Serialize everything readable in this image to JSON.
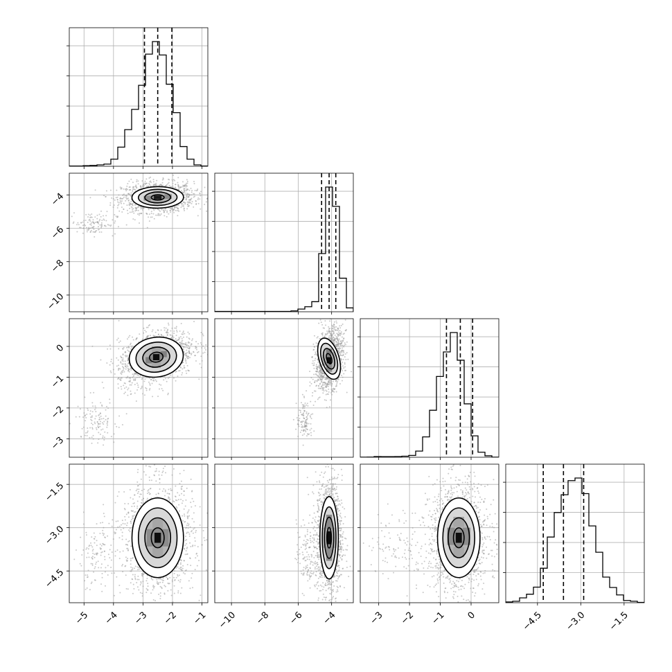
{
  "figure": {
    "background": "#ffffff",
    "line_color": "#000000",
    "grid_color": "#b0b0b0",
    "scatter_color": "#9a9a9a"
  },
  "chart_data": {
    "type": "corner",
    "title": "",
    "parameters": [
      {
        "name": "",
        "range": [
          -5.5,
          -0.8
        ],
        "ticks": [
          -5,
          -4,
          -3,
          -2,
          -1
        ],
        "tick_labels": [
          "−5",
          "−4",
          "−3",
          "−2",
          "−1"
        ],
        "quantiles": [
          -2.95,
          -2.5,
          -2.02
        ],
        "hist_bin_edges": [
          -5.5,
          -5.265,
          -5.03,
          -4.795,
          -4.56,
          -4.325,
          -4.09,
          -3.855,
          -3.62,
          -3.385,
          -3.15,
          -2.915,
          -2.68,
          -2.445,
          -2.21,
          -1.975,
          -1.74,
          -1.505,
          -1.27,
          -1.035,
          -0.8
        ],
        "hist_counts": [
          1,
          1,
          2,
          3,
          5,
          8,
          26,
          70,
          134,
          208,
          296,
          410,
          456,
          407,
          300,
          196,
          72,
          26,
          5,
          1
        ]
      },
      {
        "name": "",
        "range": [
          -11.0,
          -2.7
        ],
        "ticks": [
          -10,
          -8,
          -6,
          -4
        ],
        "tick_labels": [
          "−10",
          "−8",
          "−6",
          "−4"
        ],
        "quantiles": [
          -4.6,
          -4.15,
          -3.75
        ],
        "hist_bin_edges": [
          -11.0,
          -10.585,
          -10.17,
          -9.755,
          -9.34,
          -8.925,
          -8.51,
          -8.095,
          -7.68,
          -7.265,
          -6.85,
          -6.435,
          -6.02,
          -5.605,
          -5.19,
          -4.775,
          -4.36,
          -3.945,
          -3.53,
          -3.115,
          -2.7
        ],
        "hist_counts": [
          1,
          1,
          1,
          1,
          1,
          1,
          1,
          1,
          1,
          1,
          1,
          3,
          9,
          17,
          34,
          196,
          420,
          355,
          113,
          13
        ]
      },
      {
        "name": "",
        "range": [
          -3.6,
          0.9
        ],
        "ticks": [
          -3,
          -2,
          -1,
          0
        ],
        "tick_labels": [
          "−3",
          "−2",
          "−1",
          "0"
        ],
        "quantiles": [
          -0.8,
          -0.35,
          0.05
        ],
        "hist_bin_edges": [
          -3.6,
          -3.375,
          -3.15,
          -2.925,
          -2.7,
          -2.475,
          -2.25,
          -2.025,
          -1.8,
          -1.575,
          -1.35,
          -1.125,
          -0.9,
          -0.675,
          -0.45,
          -0.225,
          0.0,
          0.225,
          0.45,
          0.675,
          0.9
        ],
        "hist_counts": [
          1,
          2,
          8,
          7,
          7,
          9,
          13,
          23,
          77,
          255,
          589,
          1013,
          1320,
          1563,
          1216,
          669,
          268,
          63,
          18,
          1
        ]
      },
      {
        "name": "",
        "range": [
          -5.6,
          -0.8
        ],
        "ticks": [
          -4.5,
          -3.0,
          -1.5
        ],
        "tick_labels": [
          "−4.5",
          "−3.0",
          "−1.5"
        ],
        "quantiles": [
          -4.3,
          -3.6,
          -2.9
        ],
        "hist_bin_edges": [
          -5.6,
          -5.36,
          -5.12,
          -4.88,
          -4.64,
          -4.4,
          -4.16,
          -3.92,
          -3.68,
          -3.44,
          -3.2,
          -2.96,
          -2.72,
          -2.48,
          -2.24,
          -2.0,
          -1.76,
          -1.52,
          -1.28,
          -1.04,
          -0.8
        ],
        "hist_counts": [
          2,
          4,
          13,
          23,
          42,
          93,
          177,
          243,
          291,
          329,
          336,
          294,
          207,
          136,
          69,
          41,
          21,
          6,
          4,
          1
        ]
      }
    ],
    "histogram_ylim": [
      0,
      460
    ],
    "histogram_yticks": [
      100,
      200,
      300,
      400
    ],
    "pairs": [
      {
        "x_param": 0,
        "y_param": 1,
        "center": [
          -2.5,
          -4.15
        ],
        "sigma": [
          0.38,
          0.28
        ],
        "rho": 0.05,
        "cluster2_center": [
          -4.7,
          -5.7
        ],
        "cluster2_sigma": [
          0.4,
          0.35
        ],
        "contour_levels": [
          0.5,
          1.0,
          1.5,
          2.0
        ],
        "density_cells": [
          {
            "x": -2.5,
            "y": -4.15,
            "w": 0.26,
            "h": 0.22,
            "level": 0.9
          },
          {
            "x": -2.85,
            "y": -4.2,
            "w": 0.25,
            "h": 0.28,
            "level": 0.45
          },
          {
            "x": -2.15,
            "y": -4.1,
            "w": 0.25,
            "h": 0.28,
            "level": 0.45
          },
          {
            "x": -2.5,
            "y": -3.85,
            "w": 0.3,
            "h": 0.2,
            "level": 0.3
          },
          {
            "x": -2.5,
            "y": -4.45,
            "w": 0.3,
            "h": 0.2,
            "level": 0.3
          }
        ]
      },
      {
        "x_param": 0,
        "y_param": 2,
        "center": [
          -2.55,
          -0.35
        ],
        "sigma": [
          0.4,
          0.28
        ],
        "rho": 0.35,
        "cluster2_center": [
          -4.6,
          -2.4
        ],
        "cluster2_sigma": [
          0.35,
          0.35
        ],
        "contour_levels": [
          0.5,
          1.0,
          1.5,
          2.0
        ],
        "density_cells": [
          {
            "x": -2.55,
            "y": -0.35,
            "w": 0.22,
            "h": 0.2,
            "level": 0.95
          },
          {
            "x": -2.3,
            "y": -0.25,
            "w": 0.22,
            "h": 0.2,
            "level": 0.5
          },
          {
            "x": -2.8,
            "y": -0.45,
            "w": 0.22,
            "h": 0.2,
            "level": 0.5
          },
          {
            "x": -2.55,
            "y": -0.1,
            "w": 0.3,
            "h": 0.2,
            "level": 0.35
          },
          {
            "x": -2.55,
            "y": -0.6,
            "w": 0.3,
            "h": 0.2,
            "level": 0.35
          }
        ]
      },
      {
        "x_param": 1,
        "y_param": 2,
        "center": [
          -4.15,
          -0.4
        ],
        "sigma": [
          0.26,
          0.3
        ],
        "rho": 0.25,
        "cluster2_center": [
          -5.6,
          -2.4
        ],
        "cluster2_sigma": [
          0.25,
          0.35
        ],
        "contour_levels": [
          0.5,
          1.0,
          1.5,
          2.0
        ],
        "density_cells": [
          {
            "x": -4.15,
            "y": -0.45,
            "w": 0.28,
            "h": 0.2,
            "level": 0.95
          },
          {
            "x": -4.15,
            "y": -0.2,
            "w": 0.35,
            "h": 0.25,
            "level": 0.5
          },
          {
            "x": -4.15,
            "y": -0.7,
            "w": 0.35,
            "h": 0.25,
            "level": 0.45
          },
          {
            "x": -3.9,
            "y": -0.35,
            "w": 0.25,
            "h": 0.35,
            "level": 0.3
          },
          {
            "x": -4.45,
            "y": -0.45,
            "w": 0.25,
            "h": 0.35,
            "level": 0.3
          }
        ]
      },
      {
        "x_param": 0,
        "y_param": 3,
        "center": [
          -2.5,
          -3.35
        ],
        "sigma": [
          0.38,
          0.6
        ],
        "rho": 0.0,
        "cluster2_center": [
          -4.6,
          -4.0
        ],
        "cluster2_sigma": [
          0.4,
          0.6
        ],
        "contour_levels": [
          0.5,
          1.0,
          1.5,
          2.0
        ],
        "density_cells": [
          {
            "x": -2.5,
            "y": -3.35,
            "w": 0.22,
            "h": 0.35,
            "level": 0.95
          },
          {
            "x": -2.75,
            "y": -3.35,
            "w": 0.25,
            "h": 0.6,
            "level": 0.45
          },
          {
            "x": -2.25,
            "y": -3.35,
            "w": 0.25,
            "h": 0.6,
            "level": 0.45
          },
          {
            "x": -2.5,
            "y": -2.85,
            "w": 0.35,
            "h": 0.35,
            "level": 0.35
          },
          {
            "x": -2.5,
            "y": -3.85,
            "w": 0.35,
            "h": 0.35,
            "level": 0.35
          }
        ]
      },
      {
        "x_param": 1,
        "y_param": 3,
        "center": [
          -4.15,
          -3.35
        ],
        "sigma": [
          0.24,
          0.62
        ],
        "rho": 0.0,
        "cluster2_center": [
          -5.5,
          -4.0
        ],
        "cluster2_sigma": [
          0.3,
          0.6
        ],
        "contour_levels": [
          0.5,
          1.0,
          1.5,
          2.0
        ],
        "density_cells": [
          {
            "x": -4.15,
            "y": -3.35,
            "w": 0.25,
            "h": 0.45,
            "level": 0.95
          },
          {
            "x": -4.15,
            "y": -2.8,
            "w": 0.35,
            "h": 0.5,
            "level": 0.45
          },
          {
            "x": -4.15,
            "y": -3.9,
            "w": 0.35,
            "h": 0.5,
            "level": 0.45
          },
          {
            "x": -4.45,
            "y": -3.35,
            "w": 0.25,
            "h": 0.7,
            "level": 0.3
          },
          {
            "x": -3.85,
            "y": -3.35,
            "w": 0.25,
            "h": 0.7,
            "level": 0.3
          }
        ]
      },
      {
        "x_param": 2,
        "y_param": 3,
        "center": [
          -0.4,
          -3.35
        ],
        "sigma": [
          0.3,
          0.6
        ],
        "rho": 0.0,
        "cluster2_center": [
          -2.2,
          -3.6
        ],
        "cluster2_sigma": [
          0.6,
          0.6
        ],
        "contour_levels": [
          0.5,
          1.0,
          1.5,
          2.0
        ],
        "density_cells": [
          {
            "x": -0.4,
            "y": -3.35,
            "w": 0.2,
            "h": 0.35,
            "level": 0.95
          },
          {
            "x": -0.65,
            "y": -3.3,
            "w": 0.25,
            "h": 0.6,
            "level": 0.45
          },
          {
            "x": -0.15,
            "y": -3.3,
            "w": 0.25,
            "h": 0.6,
            "level": 0.45
          },
          {
            "x": -0.4,
            "y": -2.8,
            "w": 0.35,
            "h": 0.35,
            "level": 0.35
          },
          {
            "x": -0.4,
            "y": -3.85,
            "w": 0.35,
            "h": 0.35,
            "level": 0.35
          }
        ]
      }
    ]
  }
}
